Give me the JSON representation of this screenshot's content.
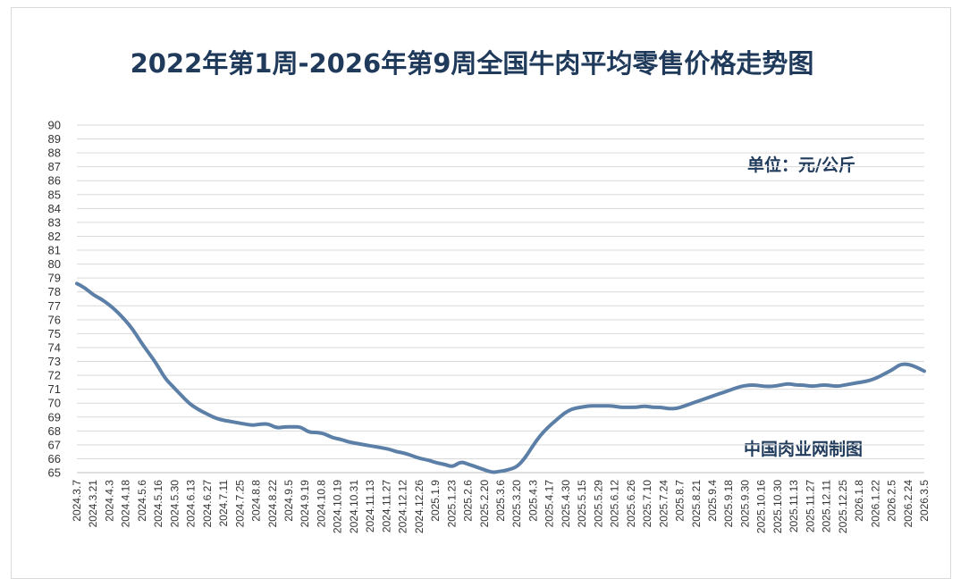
{
  "chart_data": {
    "type": "line",
    "title": "2022年第1周-2026年第9周全国牛肉平均零售价格走势图",
    "unit_label": "单位：元/公斤",
    "source_label": "中国肉业网制图",
    "ylim": [
      65,
      90
    ],
    "yticks": [
      65,
      66,
      67,
      68,
      69,
      70,
      71,
      72,
      73,
      74,
      75,
      76,
      77,
      78,
      79,
      80,
      81,
      82,
      83,
      84,
      85,
      86,
      87,
      88,
      89,
      90
    ],
    "grid": true,
    "line_color": "#5b7fa6",
    "x_labels": [
      "2024.3.7",
      "2024.3.21",
      "2024.4.3",
      "2024.4.18",
      "2024.5.6",
      "2024.5.16",
      "2024.5.30",
      "2024.6.13",
      "2024.6.27",
      "2024.7.11",
      "2024.7.25",
      "2024.8.8",
      "2024.8.22",
      "2024.9.5",
      "2024.9.19",
      "2024.10.8",
      "2024.10.19",
      "2024.10.31",
      "2024.11.13",
      "2024.11.27",
      "2024.12.12",
      "2024.12.26",
      "2025.1.9",
      "2025.1.23",
      "2025.2.6",
      "2025.2.20",
      "2025.3.6",
      "2025.3.20",
      "2025.4.3",
      "2025.4.17",
      "2025.4.30",
      "2025.5.15",
      "2025.5.29",
      "2025.6.12",
      "2025.6.26",
      "2025.7.10",
      "2025.7.24",
      "2025.8.7",
      "2025.8.21",
      "2025.9.4",
      "2025.9.18",
      "2025.9.30",
      "2025.10.16",
      "2025.10.30",
      "2025.11.13",
      "2025.11.27",
      "2025.12.11",
      "2025.12.25",
      "2026.1.8",
      "2026.1.22",
      "2026.2.5",
      "2026.2.24",
      "2026.3.5"
    ],
    "series": [
      {
        "values": [
          78.6,
          78.3,
          77.8,
          77.5,
          77.1,
          76.6,
          76.0,
          75.3,
          74.4,
          73.6,
          72.8,
          71.8,
          71.2,
          70.6,
          70.0,
          69.6,
          69.3,
          69.0,
          68.8,
          68.7,
          68.6,
          68.5,
          68.4,
          68.5,
          68.5,
          68.2,
          68.3,
          68.3,
          68.3,
          67.9,
          67.9,
          67.8,
          67.5,
          67.4,
          67.2,
          67.1,
          67.0,
          66.9,
          66.8,
          66.7,
          66.5,
          66.4,
          66.2,
          66.0,
          65.9,
          65.7,
          65.6,
          65.4,
          65.8,
          65.6,
          65.4,
          65.2,
          65.0,
          65.1,
          65.2,
          65.4,
          66.0,
          66.9,
          67.7,
          68.3,
          68.8,
          69.3,
          69.6,
          69.7,
          69.8,
          69.8,
          69.8,
          69.8,
          69.7,
          69.7,
          69.7,
          69.8,
          69.7,
          69.7,
          69.6,
          69.6,
          69.8,
          70.0,
          70.2,
          70.4,
          70.6,
          70.8,
          71.0,
          71.2,
          71.3,
          71.3,
          71.2,
          71.2,
          71.3,
          71.4,
          71.3,
          71.3,
          71.2,
          71.3,
          71.3,
          71.2,
          71.3,
          71.4,
          71.5,
          71.6,
          71.8,
          72.1,
          72.4,
          72.8,
          72.8,
          72.6,
          72.3
        ]
      }
    ]
  }
}
